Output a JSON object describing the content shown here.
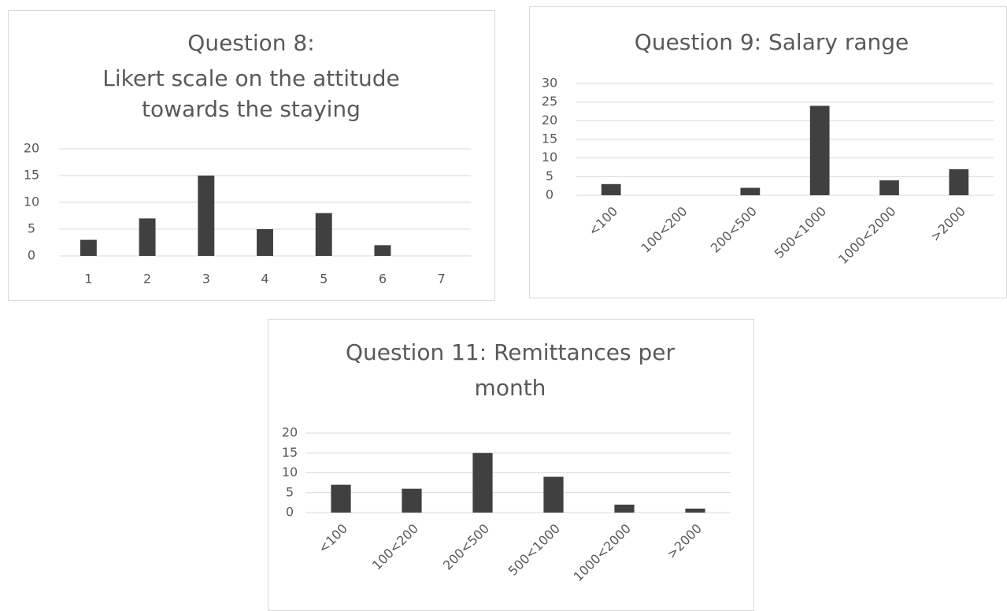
{
  "chart_data": [
    {
      "type": "bar",
      "title": [
        "Question 8:",
        "Likert scale on the attitude",
        "towards the staying"
      ],
      "categories": [
        "1",
        "2",
        "3",
        "4",
        "5",
        "6",
        "7"
      ],
      "values": [
        3,
        7,
        15,
        5,
        8,
        2,
        0
      ],
      "color": "#404040",
      "ylim": [
        0,
        20
      ],
      "yticks": [
        0,
        5,
        10,
        15,
        20
      ],
      "grid": true
    },
    {
      "type": "bar",
      "title": [
        "Question 9: Salary range"
      ],
      "categories": [
        "<100",
        "100<200",
        "200<500",
        "500<1000",
        "1000<2000",
        ">2000"
      ],
      "values": [
        3,
        0,
        2,
        24,
        4,
        7
      ],
      "color": "#404040",
      "ylim": [
        0,
        30
      ],
      "yticks": [
        0,
        5,
        10,
        15,
        20,
        25,
        30
      ],
      "grid": true
    },
    {
      "type": "bar",
      "title": [
        "Question 11: Remittances per",
        "month"
      ],
      "categories": [
        "<100",
        "100<200",
        "200<500",
        "500<1000",
        "1000<2000",
        ">2000"
      ],
      "values": [
        7,
        6,
        15,
        9,
        2,
        1
      ],
      "color": "#404040",
      "ylim": [
        0,
        20
      ],
      "yticks": [
        0,
        5,
        10,
        15,
        20
      ],
      "grid": true
    }
  ]
}
